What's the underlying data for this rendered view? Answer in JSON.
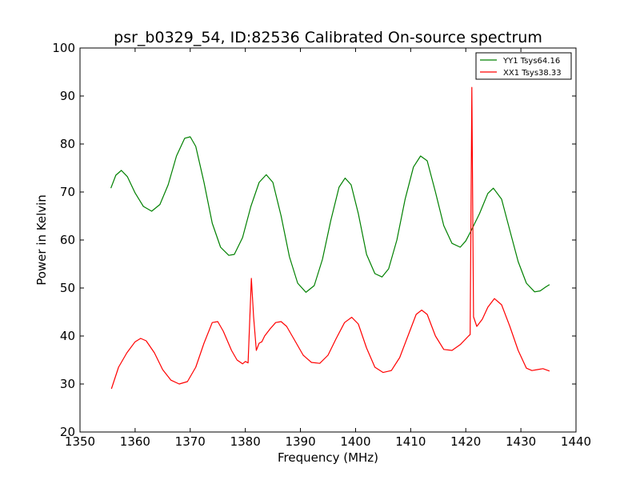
{
  "chart_data": {
    "type": "line",
    "title": "psr_b0329_54, ID:82536 Calibrated On-source spectrum",
    "xlabel": "Frequency (MHz)",
    "ylabel": "Power in Kelvin",
    "xlim": [
      1350,
      1440
    ],
    "ylim": [
      20,
      100
    ],
    "xticks": [
      1350,
      1360,
      1370,
      1380,
      1390,
      1400,
      1410,
      1420,
      1430,
      1440
    ],
    "yticks": [
      20,
      30,
      40,
      50,
      60,
      70,
      80,
      90,
      100
    ],
    "legend_position": "top-right",
    "series": [
      {
        "name": "YY1 Tsys64.16",
        "color": "#008000",
        "x": [
          1355.6,
          1356.5,
          1357.5,
          1358.6,
          1360,
          1361.5,
          1363,
          1364.5,
          1366,
          1367.5,
          1369,
          1370,
          1371,
          1372.5,
          1374,
          1375.5,
          1377,
          1378,
          1379.5,
          1381,
          1382.5,
          1383.8,
          1385,
          1386.5,
          1388,
          1389.5,
          1391,
          1392.5,
          1394,
          1395.5,
          1397,
          1398.1,
          1399.2,
          1400.5,
          1402,
          1403.5,
          1404.8,
          1406,
          1407.5,
          1409,
          1410.5,
          1411.8,
          1413,
          1414.5,
          1416,
          1417.5,
          1419,
          1420,
          1421,
          1422.5,
          1424,
          1425,
          1426.5,
          1428,
          1429.5,
          1431,
          1432.5,
          1433.5,
          1434.5,
          1435.2
        ],
        "y": [
          70.8,
          73.5,
          74.5,
          73.2,
          69.8,
          67,
          66,
          67.4,
          71.5,
          77.5,
          81.2,
          81.5,
          79.5,
          72,
          63.5,
          58.5,
          56.8,
          57,
          60.5,
          67,
          72,
          73.6,
          72,
          65,
          56.5,
          51,
          49.1,
          50.5,
          56,
          64,
          71,
          72.9,
          71.5,
          65.5,
          57,
          53,
          52.3,
          54,
          60,
          68.5,
          75.2,
          77.5,
          76.5,
          70,
          63,
          59.3,
          58.5,
          59.8,
          62,
          65.5,
          69.7,
          70.8,
          68.5,
          62,
          55.5,
          51,
          49.2,
          49.4,
          50.2,
          50.7
        ]
      },
      {
        "name": "XX1 Tsys38.33",
        "color": "#ff0000",
        "x": [
          1355.7,
          1357,
          1358.5,
          1360,
          1361,
          1362,
          1363.5,
          1365,
          1366.5,
          1368,
          1369.5,
          1371,
          1372.5,
          1374,
          1375,
          1376,
          1377.5,
          1378.5,
          1379.5,
          1380,
          1380.5,
          1381.1,
          1381.5,
          1382,
          1382.5,
          1383,
          1383.5,
          1384.5,
          1385.5,
          1386.5,
          1387.5,
          1389,
          1390.5,
          1392,
          1393.5,
          1395,
          1396.5,
          1398,
          1399.3,
          1400.5,
          1402,
          1403.5,
          1405,
          1406.5,
          1408,
          1409.5,
          1411,
          1412,
          1413,
          1414.5,
          1416,
          1417.5,
          1419,
          1420.5,
          1420.8,
          1421.1,
          1421.4,
          1422,
          1423,
          1424,
          1425.2,
          1426.5,
          1428,
          1429.5,
          1431,
          1432,
          1433,
          1434,
          1435.2
        ],
        "y": [
          29,
          33.5,
          36.5,
          38.8,
          39.5,
          39,
          36.5,
          33,
          30.8,
          30,
          30.5,
          33.5,
          38.5,
          42.8,
          43,
          41,
          37,
          35,
          34.2,
          34.7,
          34.4,
          52,
          44,
          37,
          38.5,
          38.8,
          40,
          41.5,
          42.8,
          43,
          42,
          39,
          36,
          34.5,
          34.3,
          36,
          39.5,
          42.8,
          43.9,
          42.5,
          37.5,
          33.5,
          32.4,
          32.8,
          35.5,
          40,
          44.5,
          45.4,
          44.5,
          40,
          37.2,
          37,
          38.2,
          40,
          40.3,
          91.8,
          44,
          42,
          43.5,
          46,
          47.8,
          46.5,
          42,
          37,
          33.3,
          32.8,
          33,
          33.2,
          32.7
        ]
      }
    ]
  }
}
